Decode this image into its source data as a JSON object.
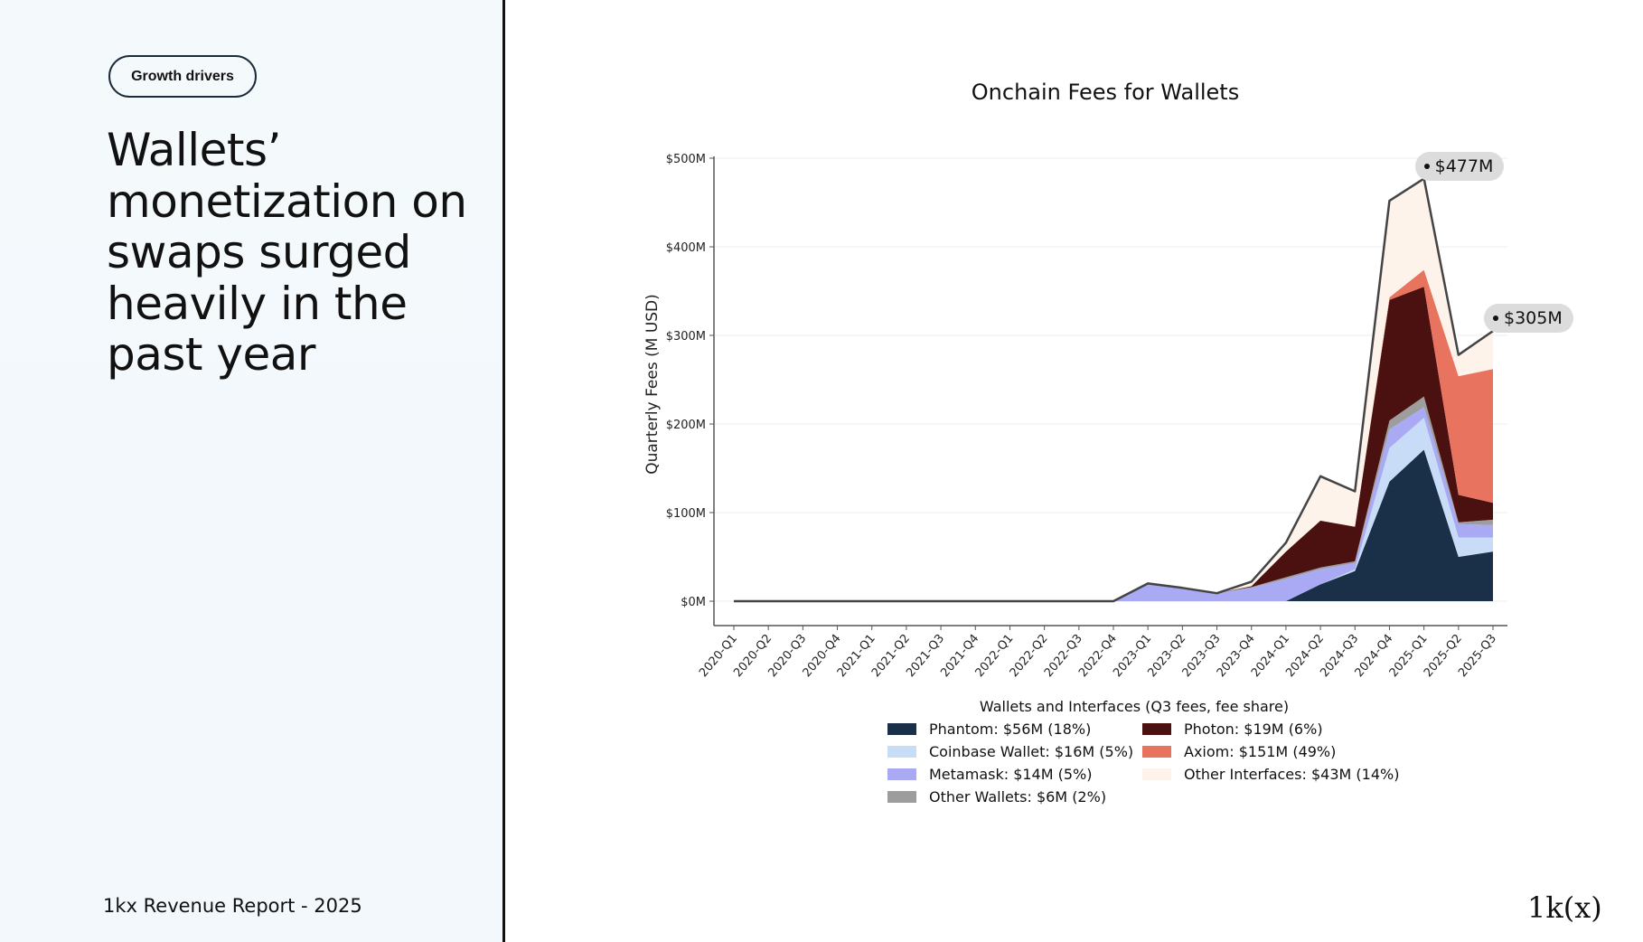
{
  "left_panel": {
    "tag": "Growth drivers",
    "headline": "Wallets’ monetization on swaps surged heavily in the past year",
    "footer": "1kx Revenue Report  - 2025"
  },
  "logo": "1k(x)",
  "chart_data": {
    "type": "area",
    "stacked": true,
    "title": "Onchain Fees for Wallets",
    "xlabel": "",
    "ylabel": "Quarterly Fees (M USD)",
    "ylim": [
      0,
      500
    ],
    "yticks": [
      "$0M",
      "$100M",
      "$200M",
      "$300M",
      "$400M",
      "$500M"
    ],
    "ytick_values": [
      0,
      100,
      200,
      300,
      400,
      500
    ],
    "grid": true,
    "categories": [
      "2020-Q1",
      "2020-Q2",
      "2020-Q3",
      "2020-Q4",
      "2021-Q1",
      "2021-Q2",
      "2021-Q3",
      "2021-Q4",
      "2022-Q1",
      "2022-Q2",
      "2022-Q3",
      "2022-Q4",
      "2023-Q1",
      "2023-Q2",
      "2023-Q3",
      "2023-Q4",
      "2024-Q1",
      "2024-Q2",
      "2024-Q3",
      "2024-Q4",
      "2025-Q1",
      "2025-Q2",
      "2025-Q3"
    ],
    "legend_title": "Wallets and Interfaces (Q3 fees, fee share)",
    "legend_placement": "bottom",
    "series": [
      {
        "name": "Phantom",
        "legend": "Phantom: $56M (18%)",
        "color": "#1a2f48",
        "values": [
          0,
          0,
          0,
          0,
          0,
          0,
          0,
          0,
          0,
          0,
          0,
          0,
          0,
          0,
          0,
          0,
          0,
          19,
          34,
          135,
          171,
          50,
          56
        ]
      },
      {
        "name": "Coinbase Wallet",
        "legend": "Coinbase Wallet: $16M (5%)",
        "color": "#c9dcf7",
        "values": [
          0,
          0,
          0,
          0,
          0,
          0,
          0,
          0,
          0,
          0,
          0,
          0,
          0,
          0,
          0,
          0,
          0,
          0,
          2,
          38,
          36,
          22,
          16
        ]
      },
      {
        "name": "Metamask",
        "legend": "Metamask: $14M (5%)",
        "color": "#a9a9f4",
        "values": [
          0,
          0,
          0,
          0,
          0,
          0,
          0,
          0,
          0,
          0,
          0,
          0,
          20,
          15,
          9,
          15,
          25,
          17,
          7,
          21,
          12,
          15,
          14
        ]
      },
      {
        "name": "Other Wallets",
        "legend": "Other Wallets: $6M (2%)",
        "color": "#9d9d9d",
        "values": [
          0,
          0,
          0,
          0,
          0,
          0,
          0,
          0,
          0,
          0,
          0,
          0,
          0,
          0,
          0,
          1,
          2,
          2,
          2,
          10,
          12,
          2,
          6
        ]
      },
      {
        "name": "Photon",
        "legend": "Photon: $19M (6%)",
        "color": "#4b1010",
        "values": [
          0,
          0,
          0,
          0,
          0,
          0,
          0,
          0,
          0,
          0,
          0,
          0,
          0,
          0,
          0,
          1,
          29,
          53,
          39,
          136,
          124,
          31,
          19
        ]
      },
      {
        "name": "Axiom",
        "legend": "Axiom: $151M (49%)",
        "color": "#e8735f",
        "values": [
          0,
          0,
          0,
          0,
          0,
          0,
          0,
          0,
          0,
          0,
          0,
          0,
          0,
          0,
          0,
          0,
          0,
          0,
          0,
          3,
          19,
          134,
          151
        ]
      },
      {
        "name": "Other Interfaces",
        "legend": "Other Interfaces: $43M (14%)",
        "color": "#fdf3eb",
        "values": [
          0,
          0,
          0,
          0,
          0,
          0,
          0,
          0,
          0,
          0,
          0,
          0,
          0,
          0,
          0,
          5,
          10,
          50,
          40,
          109,
          103,
          24,
          43
        ]
      }
    ],
    "total_line_color": "#444444",
    "annotations": [
      {
        "category": "2025-Q1",
        "value": 477,
        "label": "$477M"
      },
      {
        "category": "2025-Q3",
        "value": 305,
        "label": "$305M"
      }
    ]
  }
}
